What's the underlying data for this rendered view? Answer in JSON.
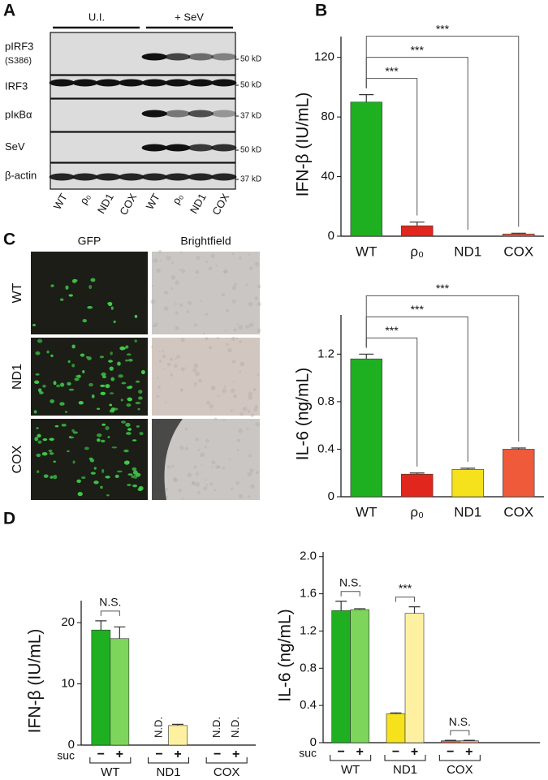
{
  "panel_labels": [
    "A",
    "B",
    "C",
    "D"
  ],
  "blot": {
    "groups": [
      "U.I.",
      "+ SeV"
    ],
    "rows": [
      {
        "label": "pIRF3",
        "sublabel": "(S386)",
        "size": "50 kD"
      },
      {
        "label": "IRF3",
        "size": "50 kD"
      },
      {
        "label": "pIκBα",
        "size": "37 kD"
      },
      {
        "label": "SeV",
        "size": "50 kD"
      },
      {
        "label": "β-actin",
        "size": "37 kD"
      }
    ],
    "lanes": [
      "WT",
      "ρ₀",
      "ND1",
      "COX",
      "WT",
      "ρ₀",
      "ND1",
      "COX"
    ]
  },
  "micrographs": {
    "columns": [
      "GFP",
      "Brightfield"
    ],
    "rows": [
      "WT",
      "ND1",
      "COX"
    ]
  },
  "chart_data": [
    {
      "type": "bar",
      "ylabel": "IFN-β (IU/mL)",
      "categories": [
        "WT",
        "ρ₀",
        "ND1",
        "COX"
      ],
      "values": [
        90,
        7,
        0,
        1.5
      ],
      "errors": [
        5,
        2.5,
        0,
        0.5
      ],
      "colors": [
        "#1fb021",
        "#e0261d",
        "#f5e11c",
        "#ee5a3a"
      ],
      "ylim": [
        0,
        134
      ],
      "yticks": [
        0,
        40,
        80,
        120
      ],
      "comparisons": [
        "***",
        "***",
        "***"
      ]
    },
    {
      "type": "bar",
      "ylabel": "IL-6 (ng/mL)",
      "categories": [
        "WT",
        "ρ₀",
        "ND1",
        "COX"
      ],
      "values": [
        1.16,
        0.19,
        0.23,
        0.4
      ],
      "errors": [
        0.04,
        0.01,
        0.01,
        0.01
      ],
      "colors": [
        "#1fb021",
        "#e0261d",
        "#f5e11c",
        "#ee5a3a"
      ],
      "ylim": [
        0,
        1.53
      ],
      "yticks": [
        0,
        0.4,
        0.8,
        1.2
      ],
      "comparisons": [
        "***",
        "***",
        "***"
      ]
    },
    {
      "type": "grouped-bar",
      "ylabel": "IFN-β (IU/mL)",
      "xlabel": "suc",
      "categories": [
        "WT",
        "ND1",
        "COX"
      ],
      "series": [
        {
          "name": "−",
          "colors": [
            "#1fb021",
            "#f5e11c",
            "#ee5a3a"
          ],
          "values": [
            18.8,
            null,
            null
          ],
          "errors": [
            1.5,
            null,
            null
          ],
          "value_labels": [
            null,
            "N.D.",
            "N.D."
          ]
        },
        {
          "name": "+",
          "colors": [
            "#7dd65b",
            "#fdf1a1",
            "#f4a083"
          ],
          "values": [
            17.4,
            3.2,
            null
          ],
          "errors": [
            1.9,
            0.2,
            null
          ],
          "value_labels": [
            null,
            null,
            "N.D."
          ]
        }
      ],
      "ylim": [
        0,
        23.6
      ],
      "yticks": [
        0,
        10,
        20
      ],
      "comparisons": [
        "N.S.",
        null,
        null
      ]
    },
    {
      "type": "grouped-bar",
      "ylabel": "IL-6 (ng/mL)",
      "xlabel": "suc",
      "categories": [
        "WT",
        "ND1",
        "COX"
      ],
      "series": [
        {
          "name": "−",
          "colors": [
            "#1fb021",
            "#f5e11c",
            "#ee5a3a"
          ],
          "values": [
            1.42,
            0.31,
            0.02
          ],
          "errors": [
            0.1,
            0.01,
            0.005
          ]
        },
        {
          "name": "+",
          "colors": [
            "#7dd65b",
            "#fdf1a1",
            "#f4a083"
          ],
          "values": [
            1.43,
            1.39,
            0.02
          ],
          "errors": [
            0.01,
            0.07,
            0.005
          ]
        }
      ],
      "ylim": [
        0,
        2.05
      ],
      "yticks": [
        0,
        0.4,
        0.8,
        1.2,
        1.6,
        {
          "value": 2,
          "label": "2.0"
        }
      ],
      "comparisons": [
        "N.S.",
        "***",
        "N.S."
      ]
    }
  ]
}
